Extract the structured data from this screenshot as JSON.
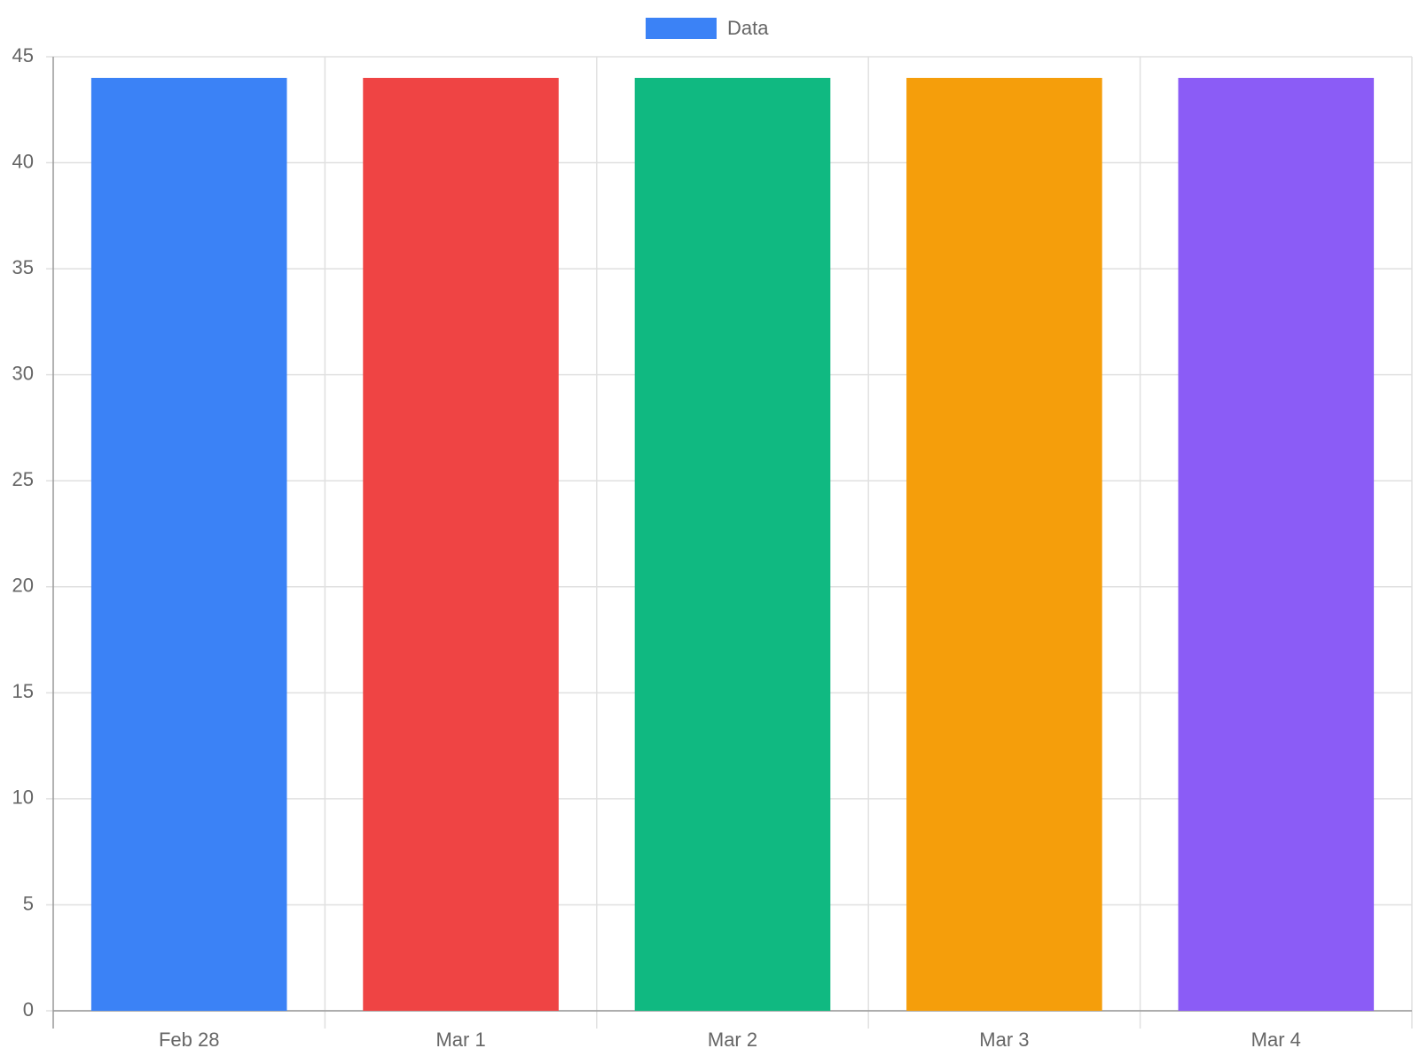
{
  "chart_data": {
    "type": "bar",
    "categories": [
      "Feb 28",
      "Mar 1",
      "Mar 2",
      "Mar 3",
      "Mar 4"
    ],
    "series": [
      {
        "name": "Data",
        "color": "#3b82f6",
        "colors": [
          "#3b82f6",
          "#ef4444",
          "#10b981",
          "#f59e0b",
          "#8b5cf6"
        ],
        "values": [
          44,
          44,
          44,
          44,
          44
        ]
      }
    ],
    "ylim": [
      0,
      45
    ],
    "yticks": [
      0,
      5,
      10,
      15,
      20,
      25,
      30,
      35,
      40,
      45
    ],
    "grid": true,
    "legend": "top"
  }
}
